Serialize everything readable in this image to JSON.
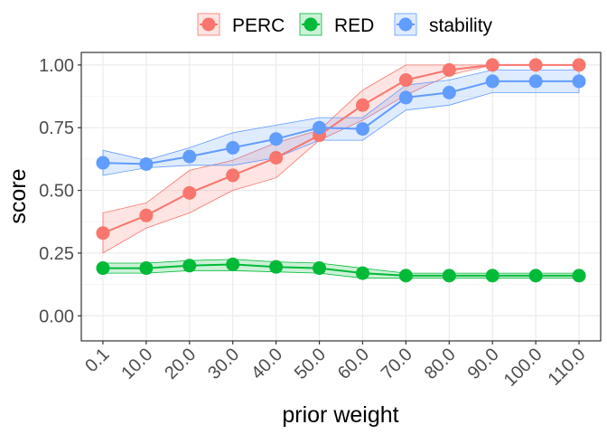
{
  "chart_data": {
    "type": "line",
    "xlabel": "prior weight",
    "ylabel": "score",
    "categories": [
      "0.1",
      "10.0",
      "20.0",
      "30.0",
      "40.0",
      "50.0",
      "60.0",
      "70.0",
      "80.0",
      "90.0",
      "100.0",
      "110.0"
    ],
    "ylim": [
      -0.1,
      1.05
    ],
    "yticks": [
      "0.00",
      "0.25",
      "0.50",
      "0.75",
      "1.00"
    ],
    "ytick_values": [
      0,
      0.25,
      0.5,
      0.75,
      1.0
    ],
    "grid": true,
    "legend_position": "top",
    "series": [
      {
        "name": "PERC",
        "color": "#F8766D",
        "values": [
          0.33,
          0.4,
          0.49,
          0.56,
          0.63,
          0.72,
          0.84,
          0.94,
          0.98,
          1.0,
          1.0,
          1.0
        ],
        "lower": [
          0.25,
          0.35,
          0.41,
          0.5,
          0.55,
          0.7,
          0.78,
          0.88,
          0.96,
          1.0,
          1.0,
          1.0
        ],
        "upper": [
          0.41,
          0.45,
          0.58,
          0.62,
          0.69,
          0.74,
          0.9,
          1.0,
          1.0,
          1.0,
          1.0,
          1.0
        ]
      },
      {
        "name": "RED",
        "color": "#00BA38",
        "values": [
          0.19,
          0.19,
          0.2,
          0.205,
          0.195,
          0.19,
          0.17,
          0.16,
          0.16,
          0.16,
          0.16,
          0.16
        ],
        "lower": [
          0.17,
          0.17,
          0.18,
          0.18,
          0.175,
          0.17,
          0.15,
          0.15,
          0.15,
          0.15,
          0.15,
          0.15
        ],
        "upper": [
          0.21,
          0.21,
          0.22,
          0.225,
          0.215,
          0.21,
          0.19,
          0.17,
          0.17,
          0.17,
          0.17,
          0.17
        ]
      },
      {
        "name": "stability",
        "color": "#619CFF",
        "values": [
          0.61,
          0.605,
          0.635,
          0.67,
          0.705,
          0.75,
          0.745,
          0.87,
          0.89,
          0.935,
          0.935,
          0.935
        ],
        "lower": [
          0.56,
          0.59,
          0.6,
          0.6,
          0.63,
          0.7,
          0.7,
          0.82,
          0.84,
          0.89,
          0.89,
          0.89
        ],
        "upper": [
          0.66,
          0.62,
          0.67,
          0.73,
          0.76,
          0.79,
          0.79,
          0.92,
          0.94,
          0.98,
          0.98,
          0.98
        ]
      }
    ]
  }
}
